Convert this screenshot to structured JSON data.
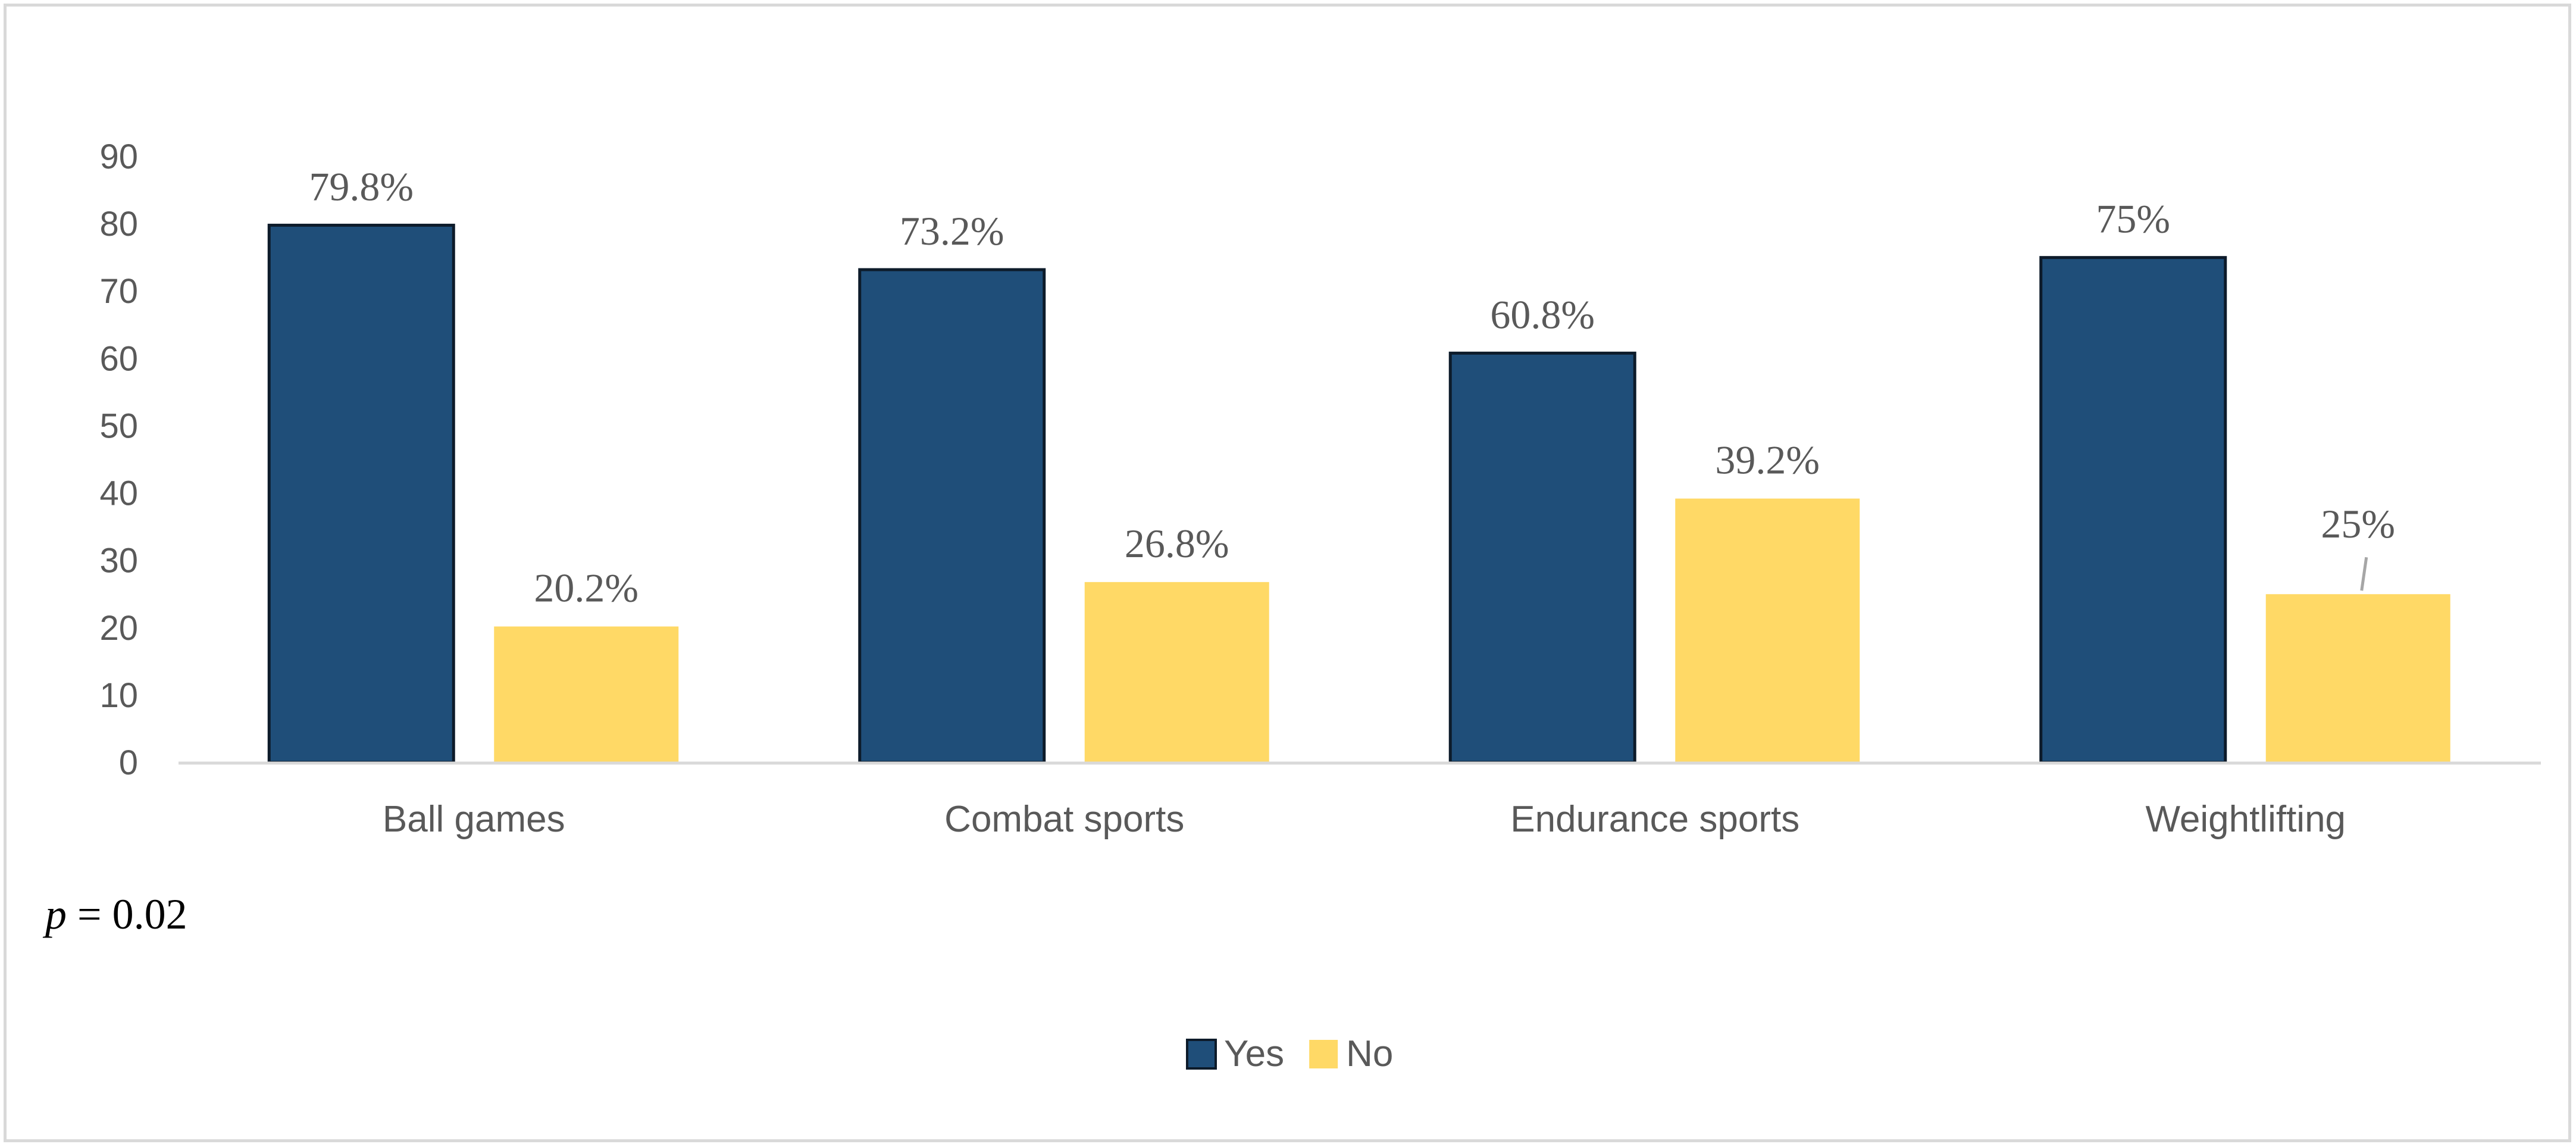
{
  "chart_data": {
    "type": "bar",
    "title": "",
    "xlabel": "",
    "ylabel": "",
    "categories": [
      "Ball games",
      "Combat sports",
      "Endurance sports",
      "Weightlifting"
    ],
    "series": [
      {
        "name": "Yes",
        "values": [
          79.8,
          73.2,
          60.8,
          75
        ],
        "labels": [
          "79.8%",
          "73.2%",
          "60.8%",
          "75%"
        ],
        "color": "#1f4e79"
      },
      {
        "name": "No",
        "values": [
          20.2,
          26.8,
          39.2,
          25
        ],
        "labels": [
          "20.2%",
          "26.8%",
          "39.2%",
          "25%"
        ],
        "color": "#ffd966"
      }
    ],
    "ylim": [
      0,
      90
    ],
    "yticks": [
      0,
      10,
      20,
      30,
      40,
      50,
      60,
      70,
      80,
      90
    ],
    "grid": false,
    "legend_position": "bottom-center",
    "annotation": {
      "symbol": "p",
      "text": " = 0.02"
    }
  }
}
